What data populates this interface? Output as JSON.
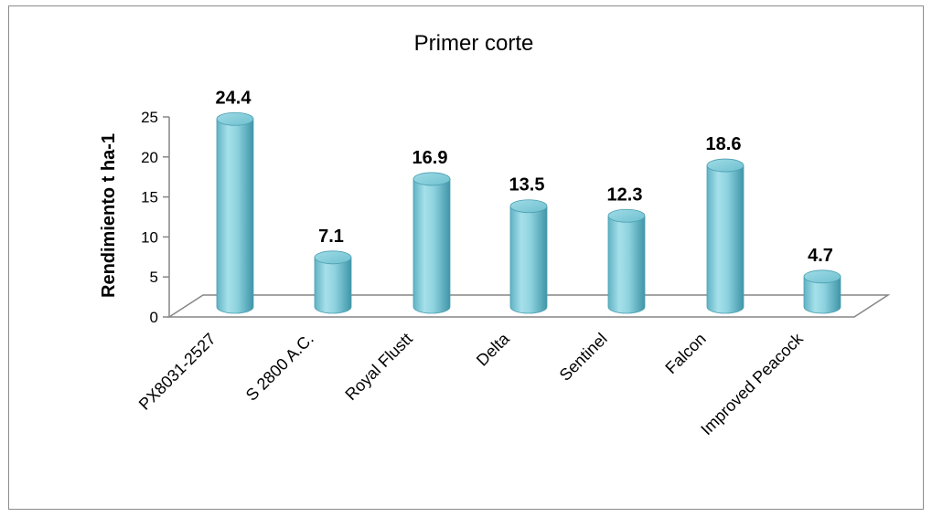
{
  "chart_data": {
    "type": "bar",
    "title": "Primer corte",
    "xlabel": "",
    "ylabel": "Rendimiento t ha-1",
    "ylim": [
      0,
      25
    ],
    "yticks": [
      0,
      5,
      10,
      15,
      20,
      25
    ],
    "categories": [
      "PX8031-2527",
      "S 2800  A.C.",
      "Royal Flustt",
      "Delta",
      "Sentinel",
      "Falcon",
      "Improved Peacock"
    ],
    "values": [
      24.4,
      7.1,
      16.9,
      13.5,
      12.3,
      18.6,
      4.7
    ],
    "data_labels": [
      "24.4",
      "7.1",
      "16.9",
      "13.5",
      "12.3",
      "18.6",
      "4.7"
    ],
    "grid": false,
    "legend": "none",
    "bar_color": "#7cc8d6"
  }
}
